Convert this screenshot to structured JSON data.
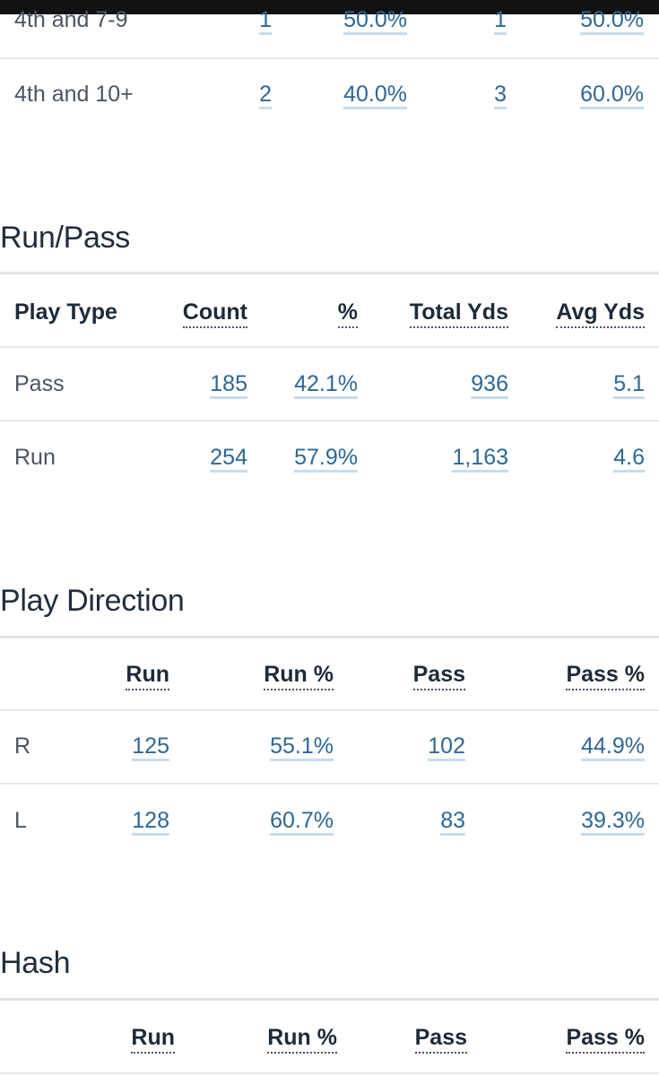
{
  "down_distance": {
    "rows": [
      {
        "label": "4th and 7-9",
        "c1": "1",
        "c2": "50.0%",
        "c3": "1",
        "c4": "50.0%"
      },
      {
        "label": "4th and 10+",
        "c1": "2",
        "c2": "40.0%",
        "c3": "3",
        "c4": "60.0%"
      }
    ]
  },
  "run_pass": {
    "title": "Run/Pass",
    "headers": [
      "Play Type",
      "Count",
      "%",
      "Total Yds",
      "Avg Yds"
    ],
    "rows": [
      {
        "label": "Pass",
        "count": "185",
        "pct": "42.1%",
        "total_yds": "936",
        "avg_yds": "5.1"
      },
      {
        "label": "Run",
        "count": "254",
        "pct": "57.9%",
        "total_yds": "1,163",
        "avg_yds": "4.6"
      }
    ]
  },
  "play_direction": {
    "title": "Play Direction",
    "headers": [
      "Run",
      "Run %",
      "Pass",
      "Pass %"
    ],
    "rows": [
      {
        "label": "R",
        "run": "125",
        "run_pct": "55.1%",
        "pass": "102",
        "pass_pct": "44.9%"
      },
      {
        "label": "L",
        "run": "128",
        "run_pct": "60.7%",
        "pass": "83",
        "pass_pct": "39.3%"
      }
    ]
  },
  "hash": {
    "title": "Hash",
    "headers": [
      "Run",
      "Run %",
      "Pass",
      "Pass %"
    ]
  }
}
